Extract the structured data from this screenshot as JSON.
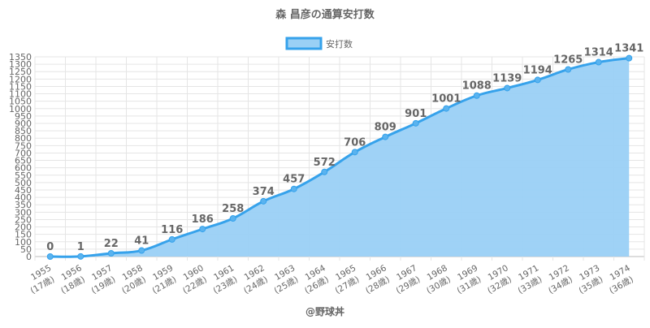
{
  "chart_data": {
    "type": "area",
    "title": "森 昌彦の通算安打数",
    "legend": {
      "label": "安打数",
      "placement": "top"
    },
    "categories": [
      "1955",
      "1956",
      "1957",
      "1958",
      "1959",
      "1960",
      "1961",
      "1962",
      "1963",
      "1964",
      "1965",
      "1966",
      "1967",
      "1968",
      "1969",
      "1970",
      "1971",
      "1972",
      "1973",
      "1974"
    ],
    "category_sublabels": [
      "(17歳)",
      "(18歳)",
      "(19歳)",
      "(20歳)",
      "(21歳)",
      "(22歳)",
      "(23歳)",
      "(24歳)",
      "(25歳)",
      "(26歳)",
      "(27歳)",
      "(28歳)",
      "(29歳)",
      "(30歳)",
      "(31歳)",
      "(32歳)",
      "(33歳)",
      "(34歳)",
      "(35歳)",
      "(36歳)"
    ],
    "series": [
      {
        "name": "安打数",
        "values": [
          0,
          1,
          22,
          41,
          116,
          186,
          258,
          374,
          457,
          572,
          706,
          809,
          901,
          1001,
          1088,
          1139,
          1194,
          1265,
          1314,
          1341
        ]
      }
    ],
    "ylim": [
      0,
      1350
    ],
    "ytick_step": 50,
    "grid": true,
    "colors": {
      "line": "#36a2eb",
      "fill": "#9ad0f5",
      "text": "#666666"
    }
  },
  "footer": "@野球丼"
}
